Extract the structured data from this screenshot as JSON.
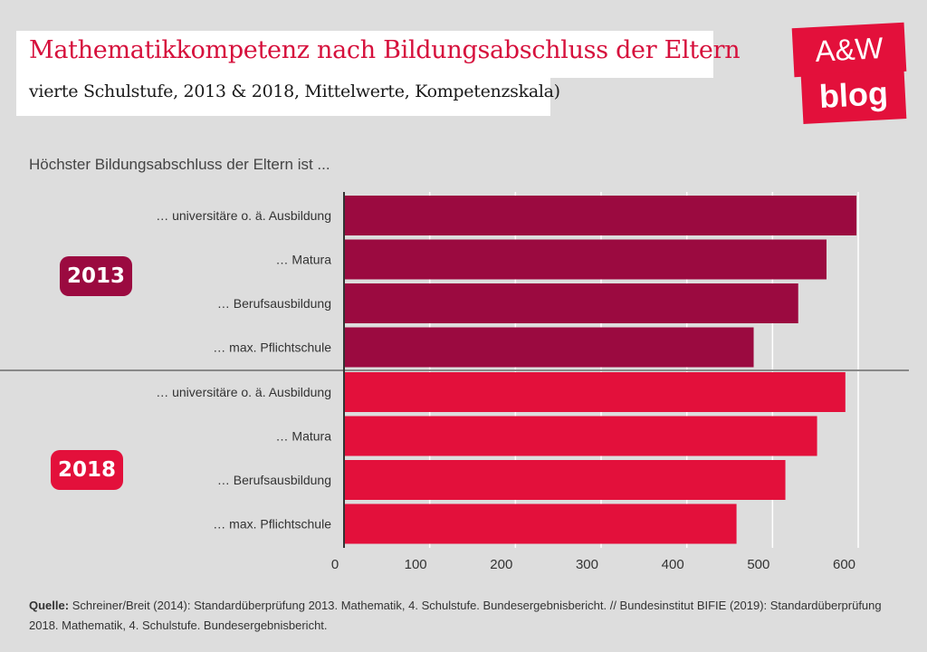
{
  "header": {
    "title": "Mathematikkompetenz nach Bildungsabschluss der Eltern",
    "subtitle": "vierte Schulstufe, 2013 & 2018, Mittelwerte, Kompetenzskala)"
  },
  "logo": {
    "line1": "A&W",
    "line2": "blog"
  },
  "intro": "Höchster Bildungsabschluss der Eltern ist ...",
  "source": {
    "label": "Quelle:",
    "text": "Schreiner/Breit (2014): Standardüberprüfung 2013. Mathematik, 4. Schulstufe. Bundesergebnisbericht. // Bundesinstitut BIFIE (2019): Standardüberprüfung 2018. Mathematik, 4. Schulstufe. Bundesergebnisbericht."
  },
  "colors": {
    "accent": "#e3103b",
    "bar_2013": "#9b0a40",
    "bar_2018": "#e3103b",
    "grid": "#ffffff"
  },
  "chart_data": {
    "type": "bar",
    "orientation": "horizontal",
    "xlim": [
      0,
      650
    ],
    "xticks": [
      0,
      100,
      200,
      300,
      400,
      500,
      600
    ],
    "grid": true,
    "groups": [
      {
        "name": "2013",
        "categories": [
          "… universitäre o. ä. Ausbildung",
          "… Matura",
          "… Berufsausbildung",
          "… max. Pflichtschule"
        ],
        "values": [
          598,
          563,
          530,
          478
        ]
      },
      {
        "name": "2018",
        "categories": [
          "… universitäre o. ä. Ausbildung",
          "… Matura",
          "… Berufsausbildung",
          "… max. Pflichtschule"
        ],
        "values": [
          585,
          552,
          515,
          458
        ]
      }
    ]
  }
}
